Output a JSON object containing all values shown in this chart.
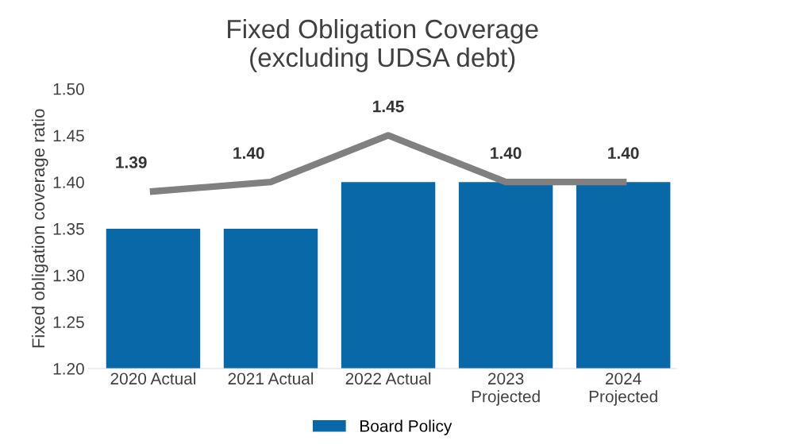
{
  "chart_data": {
    "type": "bar",
    "title": "Fixed Obligation Coverage\n(excluding UDSA debt)",
    "ylabel": "Fixed obligation coverage ratio",
    "categories": [
      "2020 Actual",
      "2021 Actual",
      "2022 Actual",
      "2023\nProjected",
      "2024\nProjected"
    ],
    "series": [
      {
        "name": "Board Policy",
        "color": "#0868a8",
        "values": [
          1.35,
          1.35,
          1.4,
          1.4,
          1.4
        ]
      },
      {
        "type": "line",
        "color": "#808080",
        "values": [
          1.39,
          1.4,
          1.45,
          1.4,
          1.4
        ],
        "value_labels": [
          "1.39",
          "1.40",
          "1.45",
          "1.40",
          "1.40"
        ]
      }
    ],
    "ylim": [
      1.2,
      1.5
    ],
    "yticks": [
      {
        "value": 1.2,
        "label": "1.20"
      },
      {
        "value": 1.25,
        "label": "1.25"
      },
      {
        "value": 1.3,
        "label": "1.30"
      },
      {
        "value": 1.35,
        "label": "1.35"
      },
      {
        "value": 1.4,
        "label": "1.40"
      },
      {
        "value": 1.45,
        "label": "1.45"
      },
      {
        "value": 1.5,
        "label": "1.50"
      }
    ],
    "grid": false,
    "legend": "bottom",
    "marker": "none",
    "line_style": "solid"
  }
}
